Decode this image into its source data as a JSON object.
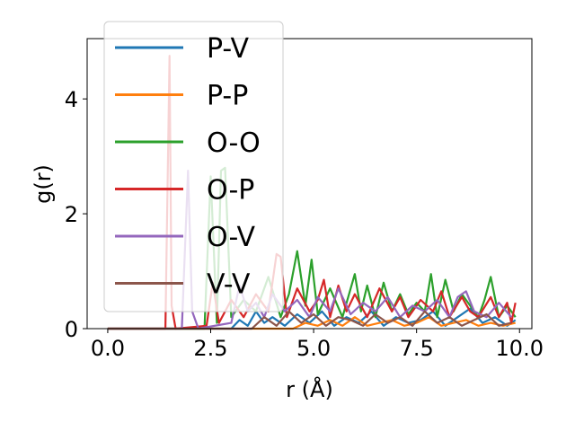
{
  "chart_data": {
    "type": "line",
    "title": "",
    "xlabel": "r (Å)",
    "ylabel": "g(r)",
    "xlim": [
      -0.5,
      10.3
    ],
    "ylim": [
      0,
      5.05
    ],
    "xticks": [
      0.0,
      2.5,
      5.0,
      7.5,
      10.0
    ],
    "xtick_labels": [
      "0.0",
      "2.5",
      "5.0",
      "7.5",
      "10.0"
    ],
    "yticks": [
      0,
      2,
      4
    ],
    "ytick_labels": [
      "0",
      "2",
      "4"
    ],
    "legend_position": "upper-left",
    "series": [
      {
        "name": "P-V",
        "color": "#1f77b4",
        "x": [
          0,
          3.0,
          3.2,
          3.4,
          3.6,
          3.8,
          4.0,
          4.3,
          4.6,
          4.9,
          5.2,
          5.5,
          5.8,
          6.1,
          6.4,
          6.7,
          7.0,
          7.3,
          7.6,
          7.9,
          8.2,
          8.5,
          8.8,
          9.1,
          9.4,
          9.7,
          9.9
        ],
        "y": [
          0,
          0,
          0.15,
          0.05,
          0.3,
          0.1,
          0.2,
          0.05,
          0.25,
          0.1,
          0.3,
          0.05,
          0.2,
          0.1,
          0.3,
          0.05,
          0.2,
          0.1,
          0.15,
          0.3,
          0.05,
          0.2,
          0.35,
          0.1,
          0.2,
          0.05,
          0.15
        ]
      },
      {
        "name": "P-P",
        "color": "#ff7f0e",
        "x": [
          0,
          4.5,
          4.8,
          5.1,
          5.4,
          5.7,
          6.0,
          6.3,
          6.6,
          6.9,
          7.2,
          7.5,
          7.8,
          8.1,
          8.4,
          8.7,
          9.0,
          9.3,
          9.6,
          9.9
        ],
        "y": [
          0,
          0,
          0.1,
          0.05,
          0.15,
          0.05,
          0.2,
          0.05,
          0.1,
          0.15,
          0.05,
          0.1,
          0.2,
          0.05,
          0.1,
          0.15,
          0.05,
          0.1,
          0.05,
          0.1
        ]
      },
      {
        "name": "O-O",
        "color": "#2ca02c",
        "x": [
          0,
          2.35,
          2.5,
          2.65,
          2.75,
          2.85,
          3.0,
          3.3,
          3.6,
          3.9,
          4.2,
          4.4,
          4.6,
          4.8,
          4.95,
          5.1,
          5.4,
          5.7,
          6.0,
          6.15,
          6.3,
          6.5,
          6.7,
          6.9,
          7.1,
          7.3,
          7.5,
          7.7,
          7.85,
          8.0,
          8.2,
          8.4,
          8.6,
          8.8,
          9.0,
          9.15,
          9.3,
          9.5,
          9.7,
          9.9
        ],
        "y": [
          0,
          0,
          2.65,
          0.1,
          2.75,
          2.8,
          0.2,
          0.5,
          0.3,
          0.9,
          0.2,
          0.6,
          1.35,
          0.4,
          1.2,
          0.25,
          0.7,
          0.2,
          0.95,
          0.3,
          0.75,
          0.2,
          0.8,
          0.3,
          0.6,
          0.25,
          0.45,
          0.3,
          0.95,
          0.2,
          0.85,
          0.3,
          0.6,
          0.4,
          0.2,
          0.5,
          0.9,
          0.2,
          0.4,
          0.2
        ]
      },
      {
        "name": "O-P",
        "color": "#d62728",
        "x": [
          0,
          1.4,
          1.5,
          1.55,
          1.65,
          2.4,
          2.55,
          2.7,
          3.0,
          3.3,
          3.6,
          3.9,
          4.1,
          4.2,
          4.35,
          4.6,
          4.9,
          5.1,
          5.25,
          5.4,
          5.6,
          5.8,
          6.0,
          6.3,
          6.6,
          6.9,
          7.1,
          7.3,
          7.6,
          7.9,
          8.1,
          8.3,
          8.6,
          8.8,
          9.0,
          9.3,
          9.5,
          9.7,
          9.8,
          9.9
        ],
        "y": [
          0,
          0,
          4.75,
          0.4,
          0,
          0.05,
          0.8,
          0.1,
          0.5,
          0.2,
          0.6,
          0.3,
          1.3,
          1.25,
          0.2,
          0.7,
          0.3,
          0.5,
          0.85,
          0.2,
          0.75,
          0.3,
          0.6,
          0.2,
          0.7,
          0.3,
          0.55,
          0.2,
          0.5,
          0.3,
          0.65,
          0.2,
          0.55,
          0.3,
          0.2,
          0.55,
          0.2,
          0.45,
          0.1,
          0.45
        ]
      },
      {
        "name": "O-V",
        "color": "#9467bd",
        "x": [
          0,
          1.8,
          1.95,
          2.05,
          2.2,
          3.0,
          3.2,
          3.4,
          3.6,
          3.8,
          4.0,
          4.3,
          4.6,
          4.9,
          5.1,
          5.4,
          5.6,
          5.9,
          6.2,
          6.5,
          6.8,
          7.1,
          7.4,
          7.7,
          8.0,
          8.3,
          8.5,
          8.7,
          8.9,
          9.2,
          9.5,
          9.8
        ],
        "y": [
          0,
          0,
          2.75,
          0.3,
          0,
          0.1,
          0.75,
          0.3,
          0.45,
          0.2,
          0.6,
          0.3,
          0.5,
          0.2,
          0.55,
          0.3,
          0.7,
          0.25,
          0.45,
          0.3,
          0.55,
          0.2,
          0.4,
          0.3,
          0.5,
          0.2,
          0.55,
          0.65,
          0.3,
          0.2,
          0.45,
          0.2
        ]
      },
      {
        "name": "V-V",
        "color": "#8c564b",
        "x": [
          0,
          3.5,
          3.8,
          4.1,
          4.4,
          4.7,
          5.0,
          5.3,
          5.6,
          5.9,
          6.2,
          6.5,
          6.8,
          7.1,
          7.4,
          7.7,
          8.0,
          8.3,
          8.6,
          8.9,
          9.2,
          9.5,
          9.8
        ],
        "y": [
          0,
          0,
          0.2,
          0.05,
          0.3,
          0.1,
          0.25,
          0.05,
          0.2,
          0.15,
          0.05,
          0.25,
          0.1,
          0.2,
          0.05,
          0.3,
          0.1,
          0.2,
          0.05,
          0.15,
          0.25,
          0.05,
          0.1
        ]
      }
    ]
  }
}
